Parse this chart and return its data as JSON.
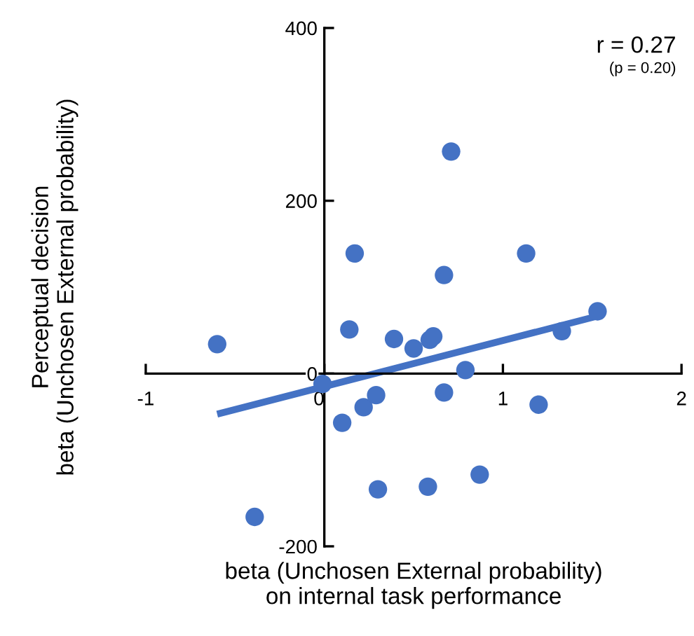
{
  "chart_data": {
    "type": "scatter",
    "xlabel": "beta (Unchosen External probability)\non internal task performance",
    "ylabel": "Perceptual decision\nbeta (Unchosen External probability)",
    "annotations": [
      "r = 0.27",
      "(p = 0.20)"
    ],
    "xlim": [
      -1,
      2
    ],
    "ylim": [
      -200,
      400
    ],
    "xticks": [
      -1,
      0,
      1,
      2
    ],
    "yticks": [
      -200,
      0,
      200,
      400
    ],
    "grid": false,
    "legend": false,
    "marker": "circle",
    "series": [
      {
        "color": "#4472c4",
        "x": [
          -0.6,
          -0.39,
          -0.01,
          0.1,
          0.22,
          0.29,
          0.14,
          0.17,
          0.3,
          0.39,
          0.5,
          0.59,
          0.61,
          0.67,
          0.67,
          0.71,
          0.58,
          0.79,
          0.87,
          1.13,
          1.2,
          1.33,
          1.53
        ],
        "values": [
          34,
          -166,
          -12,
          -57,
          -39,
          -25,
          51,
          139,
          -134,
          40,
          29,
          39,
          43,
          114,
          -22,
          257,
          -131,
          4,
          -117,
          139,
          -36,
          49,
          72
        ]
      },
      {
        "type": "line",
        "color": "#4472c4",
        "line_style": "solid",
        "marker": "none",
        "x": [
          -0.6,
          1.54
        ],
        "values": [
          -47,
          67
        ]
      }
    ]
  }
}
